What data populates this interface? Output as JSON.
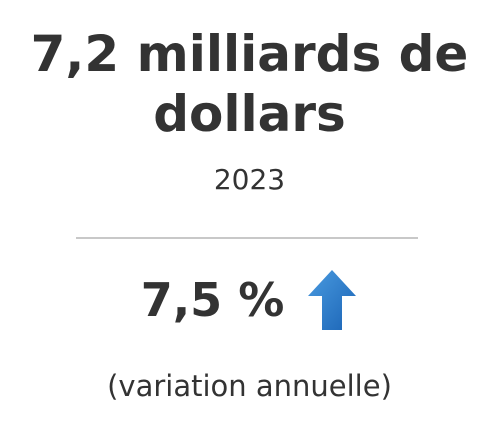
{
  "headline": {
    "line1": "7,2 milliards de",
    "line2": "dollars"
  },
  "year": "2023",
  "change": {
    "value": "7,5 %",
    "direction_icon": "arrow-up-icon",
    "note": "(variation annuelle)"
  },
  "colors": {
    "text": "#333333",
    "divider": "#c8c8c8",
    "arrow_light": "#3f90d6",
    "arrow_dark": "#1a63b5"
  }
}
